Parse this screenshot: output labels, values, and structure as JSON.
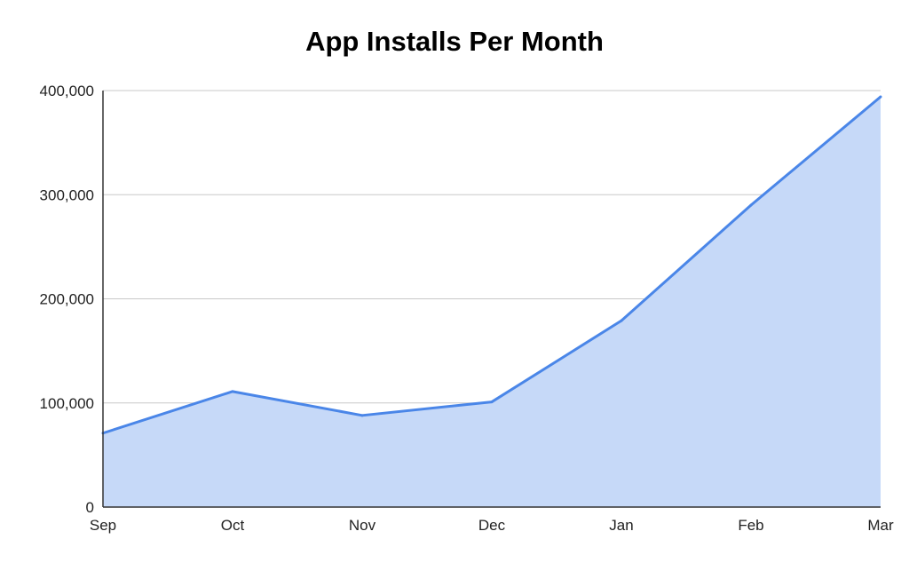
{
  "chart_data": {
    "type": "area",
    "title": "App Installs Per Month",
    "xlabel": "",
    "ylabel": "",
    "categories": [
      "Sep",
      "Oct",
      "Nov",
      "Dec",
      "Jan",
      "Feb",
      "Mar"
    ],
    "series": [
      {
        "values": [
          71000,
          111000,
          88000,
          101000,
          179000,
          290000,
          394000
        ]
      }
    ],
    "ylim": [
      0,
      400000
    ],
    "yticks": [
      0,
      100000,
      200000,
      300000,
      400000
    ],
    "ytick_labels": [
      "0",
      "100,000",
      "200,000",
      "300,000",
      "400,000"
    ],
    "grid": true,
    "legend": "none",
    "colors": {
      "line": "#4a86e8",
      "fill": "#c6d9f8",
      "grid": "#c8c8c8",
      "axis": "#333333"
    }
  }
}
